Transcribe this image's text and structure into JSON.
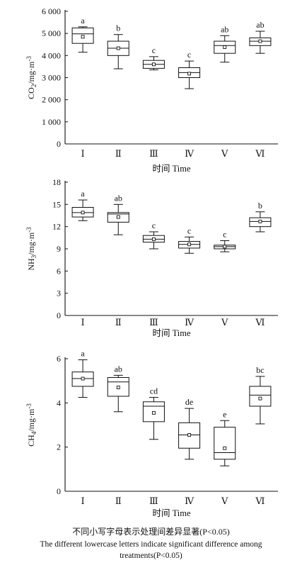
{
  "chart_data": [
    {
      "type": "box",
      "ylabel_base": "CO",
      "ylabel_sub": "2",
      "ylabel_unit": "/mg·m",
      "ylabel_exp": "-3",
      "xlabel": "时间 Time",
      "ylim": [
        0,
        6000
      ],
      "yticks": [
        0,
        1000,
        2000,
        3000,
        4000,
        5000,
        6000
      ],
      "ytick_labels": [
        "0",
        "1 000",
        "2 000",
        "3 000",
        "4 000",
        "5 000",
        "6 000"
      ],
      "categories": [
        "Ⅰ",
        "Ⅱ",
        "Ⅲ",
        "Ⅳ",
        "Ⅴ",
        "Ⅵ"
      ],
      "boxes": [
        {
          "min": 4150,
          "q1": 4550,
          "median": 4980,
          "q3": 5250,
          "max": 5300,
          "mean": 4850,
          "letter": "a"
        },
        {
          "min": 3400,
          "q1": 4000,
          "median": 4330,
          "q3": 4650,
          "max": 4950,
          "mean": 4330,
          "letter": "b"
        },
        {
          "min": 3350,
          "q1": 3420,
          "median": 3600,
          "q3": 3780,
          "max": 3950,
          "mean": 3600,
          "letter": "c"
        },
        {
          "min": 2500,
          "q1": 3000,
          "median": 3230,
          "q3": 3450,
          "max": 3750,
          "mean": 3180,
          "letter": "c"
        },
        {
          "min": 3700,
          "q1": 4100,
          "median": 4450,
          "q3": 4650,
          "max": 4900,
          "mean": 4380,
          "letter": "ab"
        },
        {
          "min": 4100,
          "q1": 4450,
          "median": 4650,
          "q3": 4800,
          "max": 5100,
          "mean": 4650,
          "letter": "ab"
        }
      ]
    },
    {
      "type": "box",
      "ylabel_base": "NH",
      "ylabel_sub": "3",
      "ylabel_unit": "/mg·m",
      "ylabel_exp": "-3",
      "xlabel": "时间 Time",
      "ylim": [
        0,
        18
      ],
      "yticks": [
        0,
        3,
        6,
        9,
        12,
        15,
        18
      ],
      "ytick_labels": [
        "0",
        "3",
        "6",
        "9",
        "12",
        "15",
        "18"
      ],
      "categories": [
        "Ⅰ",
        "Ⅱ",
        "Ⅲ",
        "Ⅳ",
        "Ⅴ",
        "Ⅵ"
      ],
      "boxes": [
        {
          "min": 12.8,
          "q1": 13.3,
          "median": 13.9,
          "q3": 14.6,
          "max": 15.6,
          "mean": 13.9,
          "letter": "a"
        },
        {
          "min": 10.9,
          "q1": 12.6,
          "median": 13.7,
          "q3": 13.9,
          "max": 15.0,
          "mean": 13.3,
          "letter": "ab"
        },
        {
          "min": 9.0,
          "q1": 9.9,
          "median": 10.3,
          "q3": 10.8,
          "max": 11.3,
          "mean": 10.3,
          "letter": "c"
        },
        {
          "min": 8.4,
          "q1": 9.1,
          "median": 9.6,
          "q3": 10.0,
          "max": 10.6,
          "mean": 9.6,
          "letter": "c"
        },
        {
          "min": 8.6,
          "q1": 9.0,
          "median": 9.3,
          "q3": 9.5,
          "max": 10.1,
          "mean": 9.3,
          "letter": "c"
        },
        {
          "min": 11.3,
          "q1": 12.0,
          "median": 12.7,
          "q3": 13.2,
          "max": 14.0,
          "mean": 12.7,
          "letter": "b"
        }
      ]
    },
    {
      "type": "box",
      "ylabel_base": "CH",
      "ylabel_sub": "4",
      "ylabel_unit": "/mg·m",
      "ylabel_exp": "-3",
      "xlabel": "时间 Time",
      "ylim": [
        0,
        6
      ],
      "yticks": [
        0,
        2,
        4,
        6
      ],
      "ytick_labels": [
        "0",
        "2",
        "4",
        "6"
      ],
      "categories": [
        "Ⅰ",
        "Ⅱ",
        "Ⅲ",
        "Ⅳ",
        "Ⅴ",
        "Ⅵ"
      ],
      "boxes": [
        {
          "min": 4.25,
          "q1": 4.75,
          "median": 5.1,
          "q3": 5.4,
          "max": 5.95,
          "mean": 5.1,
          "letter": "a"
        },
        {
          "min": 3.6,
          "q1": 4.3,
          "median": 4.95,
          "q3": 5.15,
          "max": 5.25,
          "mean": 4.7,
          "letter": "ab"
        },
        {
          "min": 2.35,
          "q1": 3.15,
          "median": 3.85,
          "q3": 4.05,
          "max": 4.25,
          "mean": 3.55,
          "letter": "cd"
        },
        {
          "min": 1.45,
          "q1": 1.95,
          "median": 2.55,
          "q3": 3.1,
          "max": 3.75,
          "mean": 2.55,
          "letter": "de"
        },
        {
          "min": 1.15,
          "q1": 1.45,
          "median": 1.75,
          "q3": 2.9,
          "max": 3.2,
          "mean": 1.95,
          "letter": "e"
        },
        {
          "min": 3.05,
          "q1": 3.85,
          "median": 4.35,
          "q3": 4.75,
          "max": 5.2,
          "mean": 4.2,
          "letter": "bc"
        }
      ]
    }
  ],
  "caption": {
    "cn": "不同小写字母表示处理间差异显著(P<0.05)",
    "en_line1": "The different lowercase letters indicate significant difference among",
    "en_line2": "treatments(P<0.05)"
  }
}
